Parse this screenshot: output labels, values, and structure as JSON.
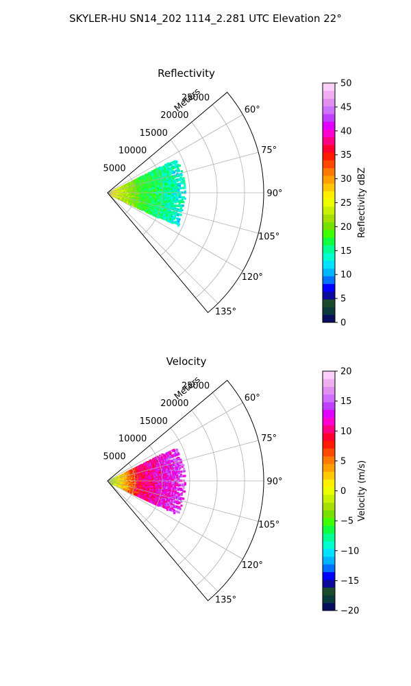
{
  "figure": {
    "suptitle": "SKYLER-HU  SN14_202  1114_2.281 UTC Elevation 22°"
  },
  "chart_data": [
    {
      "type": "heatmap",
      "title": "Reflectivity",
      "range_axis_label": "Meters",
      "range_ticks": [
        "5000",
        "10000",
        "15000",
        "20000",
        "25000"
      ],
      "range_values": [
        5000,
        10000,
        15000,
        20000,
        25000
      ],
      "range_lim": [
        0,
        28500
      ],
      "azimuth_ticks": [
        "60°",
        "75°",
        "90°",
        "105°",
        "120°",
        "135°"
      ],
      "azimuth_values": [
        60,
        75,
        90,
        105,
        120,
        135
      ],
      "azimuth_lim": [
        50,
        140
      ],
      "grid": true,
      "data_extent": {
        "azimuth": [
          63,
          116
        ],
        "range": [
          0,
          14000
        ]
      },
      "colorbar": {
        "label": "Reflectivity dBZ",
        "min": 0,
        "max": 50,
        "ticks": [
          "0",
          "5",
          "10",
          "15",
          "20",
          "25",
          "30",
          "35",
          "40",
          "45",
          "50"
        ],
        "tick_values": [
          0,
          5,
          10,
          15,
          20,
          25,
          30,
          35,
          40,
          45,
          50
        ],
        "colors": [
          "#08105e",
          "#0b3a3a",
          "#1a4a2a",
          "#0a0a9a",
          "#0000ff",
          "#0070ff",
          "#00b4ff",
          "#00e0ff",
          "#00ffd0",
          "#00ff90",
          "#10ff40",
          "#40ff00",
          "#7ae000",
          "#a6e000",
          "#c8f000",
          "#eaff00",
          "#fff000",
          "#ffc800",
          "#ffa000",
          "#ff7800",
          "#ff4800",
          "#ff1a00",
          "#ff0030",
          "#ff0080",
          "#ff00d0",
          "#e000ff",
          "#c040ff",
          "#d070ff",
          "#e090f0",
          "#f0b0f0",
          "#fad0fa"
        ]
      },
      "field": {
        "near_value": 27,
        "mid_value": 18,
        "far_value": 13
      }
    },
    {
      "type": "heatmap",
      "title": "Velocity",
      "range_axis_label": "Meters",
      "range_ticks": [
        "5000",
        "10000",
        "15000",
        "20000",
        "25000"
      ],
      "range_values": [
        5000,
        10000,
        15000,
        20000,
        25000
      ],
      "range_lim": [
        0,
        28500
      ],
      "azimuth_ticks": [
        "60°",
        "75°",
        "90°",
        "105°",
        "120°",
        "135°"
      ],
      "azimuth_values": [
        60,
        75,
        90,
        105,
        120,
        135
      ],
      "azimuth_lim": [
        50,
        140
      ],
      "grid": true,
      "data_extent": {
        "azimuth": [
          63,
          116
        ],
        "range": [
          0,
          14000
        ]
      },
      "colorbar": {
        "label": "Velocity (m/s)",
        "min": -20,
        "max": 20,
        "ticks": [
          "−20",
          "−15",
          "−10",
          "−5",
          "0",
          "5",
          "10",
          "15",
          "20"
        ],
        "tick_values": [
          -20,
          -15,
          -10,
          -5,
          0,
          5,
          10,
          15,
          20
        ],
        "colors": [
          "#08105e",
          "#0b3a3a",
          "#1a4a2a",
          "#0a0a9a",
          "#0000ff",
          "#0070ff",
          "#00b4ff",
          "#00e0ff",
          "#00ffd0",
          "#00ff90",
          "#10ff40",
          "#40ff00",
          "#7ae000",
          "#a6e000",
          "#c8f000",
          "#eaff00",
          "#fff000",
          "#ffc800",
          "#ffa000",
          "#ff7800",
          "#ff4800",
          "#ff1a00",
          "#ff0030",
          "#ff0080",
          "#ff00d0",
          "#e000ff",
          "#c040ff",
          "#d070ff",
          "#e090f0",
          "#f0b0f0",
          "#fad0fa"
        ]
      },
      "field": {
        "near_value": -4,
        "mid_value": 10,
        "far_value": 14
      }
    }
  ]
}
